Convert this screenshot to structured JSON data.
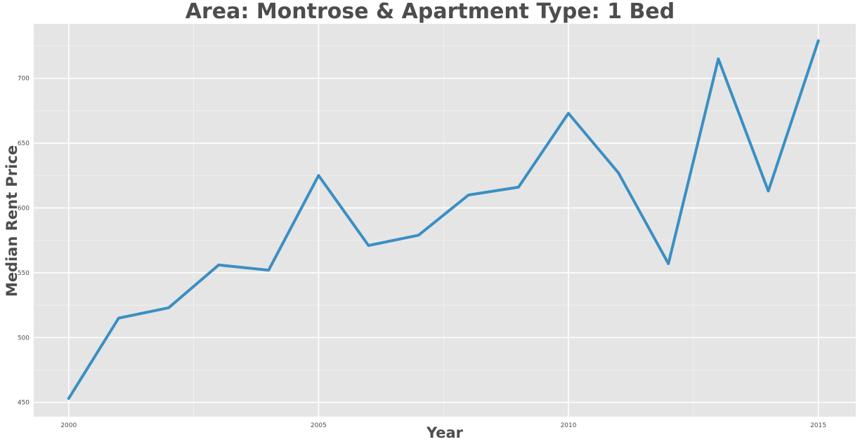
{
  "chart_data": {
    "type": "line",
    "title": "Area: Montrose & Apartment Type: 1 Bed",
    "xlabel": "Year",
    "ylabel": "Median Rent Price",
    "x": [
      2000,
      2001,
      2002,
      2003,
      2004,
      2005,
      2006,
      2007,
      2008,
      2009,
      2010,
      2011,
      2012,
      2013,
      2014,
      2015
    ],
    "series": [
      {
        "values": [
          453,
          515,
          523,
          556,
          552,
          625,
          571,
          579,
          610,
          616,
          673,
          627,
          557,
          715,
          613,
          729
        ]
      }
    ],
    "xlim": [
      1999.3,
      2015.75
    ],
    "ylim": [
      439,
      742
    ],
    "x_ticks": [
      "2000",
      "2005",
      "2010",
      "2015"
    ],
    "y_ticks": [
      "450",
      "500",
      "550",
      "600",
      "650",
      "700"
    ],
    "grid": true,
    "colors": {
      "line": "#3a8fc3",
      "panel": "#e5e5e5",
      "grid": "#ffffff",
      "text": "#4d4d4d"
    }
  }
}
